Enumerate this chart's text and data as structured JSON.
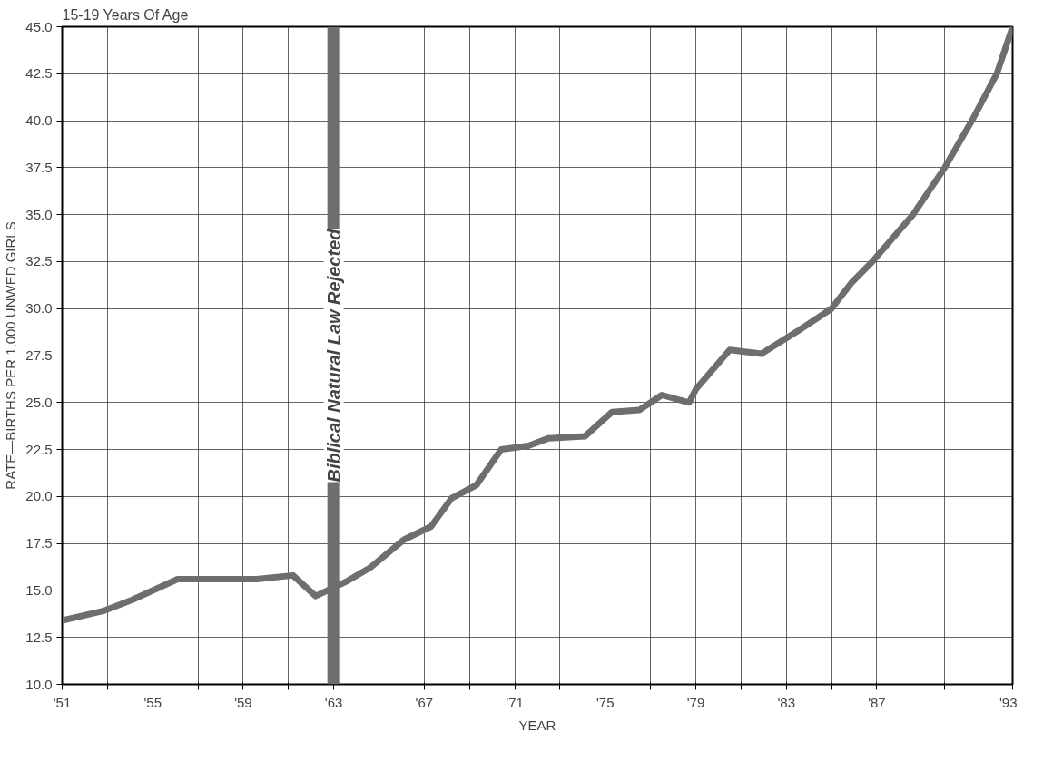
{
  "chart_data": {
    "type": "line",
    "title": "15-19 Years Of Age",
    "xlabel": "YEAR",
    "ylabel": "RATE—BIRTHS PER 1,000 UNWED GIRLS",
    "x": [
      1951,
      1952.8,
      1954.1,
      1956.1,
      1959.6,
      1961.2,
      1962.2,
      1963.6,
      1964.6,
      1966.1,
      1967.3,
      1968.2,
      1969.3,
      1970.4,
      1971.6,
      1972.5,
      1974.1,
      1975.3,
      1976.5,
      1977.5,
      1978.7,
      1979.0,
      1980.5,
      1981.9,
      1983.5,
      1985.0,
      1985.9,
      1986.8,
      1988.6,
      1990.0,
      1991.2,
      1992.3,
      1993
    ],
    "series": [
      {
        "color": "#6e6e6e",
        "values": [
          13.4,
          13.9,
          14.5,
          15.6,
          15.6,
          15.8,
          14.7,
          15.5,
          16.2,
          17.7,
          18.4,
          19.9,
          20.6,
          22.5,
          22.7,
          23.1,
          23.2,
          24.5,
          24.6,
          25.4,
          25.0,
          25.7,
          27.8,
          27.6,
          28.8,
          30.0,
          31.4,
          32.5,
          35.0,
          37.5,
          40.0,
          42.5,
          45.0
        ]
      }
    ],
    "xlim": [
      1951,
      1993
    ],
    "xticks": [
      {
        "value": 1951,
        "label": "'51"
      },
      {
        "value": 1953,
        "label": null
      },
      {
        "value": 1955,
        "label": "'55"
      },
      {
        "value": 1957,
        "label": null
      },
      {
        "value": 1959,
        "label": "'59"
      },
      {
        "value": 1961,
        "label": null
      },
      {
        "value": 1963,
        "label": "'63"
      },
      {
        "value": 1965,
        "label": null
      },
      {
        "value": 1967,
        "label": "'67"
      },
      {
        "value": 1969,
        "label": null
      },
      {
        "value": 1971,
        "label": "'71"
      },
      {
        "value": 1973,
        "label": null
      },
      {
        "value": 1975,
        "label": "'75"
      },
      {
        "value": 1977,
        "label": null
      },
      {
        "value": 1979,
        "label": "'79"
      },
      {
        "value": 1981,
        "label": null
      },
      {
        "value": 1983,
        "label": "'83"
      },
      {
        "value": 1985,
        "label": null
      },
      {
        "value": 1987,
        "label": "'87"
      },
      {
        "value": 1990,
        "label": null
      },
      {
        "value": 1993,
        "label": "'93"
      }
    ],
    "ylim": [
      10,
      45
    ],
    "yticks": [
      {
        "value": 10,
        "label": "10.0"
      },
      {
        "value": 12.5,
        "label": "12.5"
      },
      {
        "value": 15,
        "label": "15.0"
      },
      {
        "value": 17.5,
        "label": "17.5"
      },
      {
        "value": 20,
        "label": "20.0"
      },
      {
        "value": 22.5,
        "label": "22.5"
      },
      {
        "value": 25,
        "label": "25.0"
      },
      {
        "value": 27.5,
        "label": "27.5"
      },
      {
        "value": 30,
        "label": "30.0"
      },
      {
        "value": 32.5,
        "label": "32.5"
      },
      {
        "value": 35,
        "label": "35.0"
      },
      {
        "value": 37.5,
        "label": "37.5"
      },
      {
        "value": 40,
        "label": "40.0"
      },
      {
        "value": 42.5,
        "label": "42.5"
      },
      {
        "value": 45,
        "label": "45.0"
      }
    ],
    "grid": true,
    "marker": "none",
    "line_style": "solid",
    "ref_lines": [
      {
        "axis": "x",
        "value": 1963,
        "label": "Biblical Natural Law Rejected",
        "color": "#6e6e6e"
      }
    ]
  }
}
